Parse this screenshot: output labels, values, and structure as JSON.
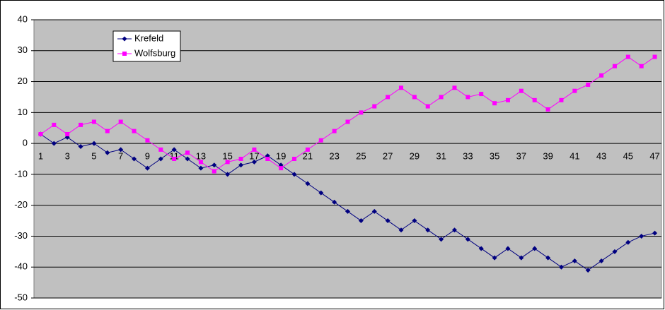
{
  "chart_data": {
    "type": "line",
    "categories": [
      1,
      null,
      3,
      null,
      5,
      null,
      7,
      null,
      9,
      null,
      11,
      null,
      13,
      null,
      15,
      null,
      17,
      null,
      19,
      null,
      21,
      null,
      23,
      null,
      25,
      null,
      27,
      null,
      29,
      null,
      31,
      null,
      33,
      null,
      35,
      null,
      37,
      null,
      39,
      null,
      41,
      null,
      43,
      null,
      45,
      null,
      47
    ],
    "series": [
      {
        "name": "Krefeld",
        "color": "#000080",
        "marker": "diamond",
        "values": [
          3,
          0,
          2,
          -1,
          0,
          -3,
          -2,
          -5,
          -8,
          -5,
          -2,
          -5,
          -8,
          -7,
          -10,
          -7,
          -6,
          -4,
          -7,
          -10,
          -13,
          -16,
          -19,
          -22,
          -25,
          -22,
          -25,
          -28,
          -25,
          -28,
          -31,
          -28,
          -31,
          -34,
          -37,
          -34,
          -37,
          -34,
          -37,
          -40,
          -38,
          -41,
          -38,
          -35,
          -32,
          -30,
          -29
        ]
      },
      {
        "name": "Wolfsburg",
        "color": "#ff00ff",
        "marker": "square",
        "values": [
          3,
          6,
          3,
          6,
          7,
          4,
          7,
          4,
          1,
          -2,
          -5,
          -3,
          -6,
          -9,
          -6,
          -5,
          -2,
          -5,
          -8,
          -5,
          -2,
          1,
          4,
          7,
          10,
          12,
          15,
          18,
          15,
          12,
          15,
          18,
          15,
          16,
          13,
          14,
          17,
          14,
          11,
          14,
          17,
          19,
          22,
          25,
          28,
          25,
          28
        ]
      }
    ],
    "ylim": [
      -50,
      40
    ],
    "yticks": [
      -50,
      -40,
      -30,
      -20,
      -10,
      0,
      10,
      20,
      30,
      40
    ],
    "grid": true,
    "plot_background": "#c0c0c0",
    "legend_position": "top-left"
  }
}
